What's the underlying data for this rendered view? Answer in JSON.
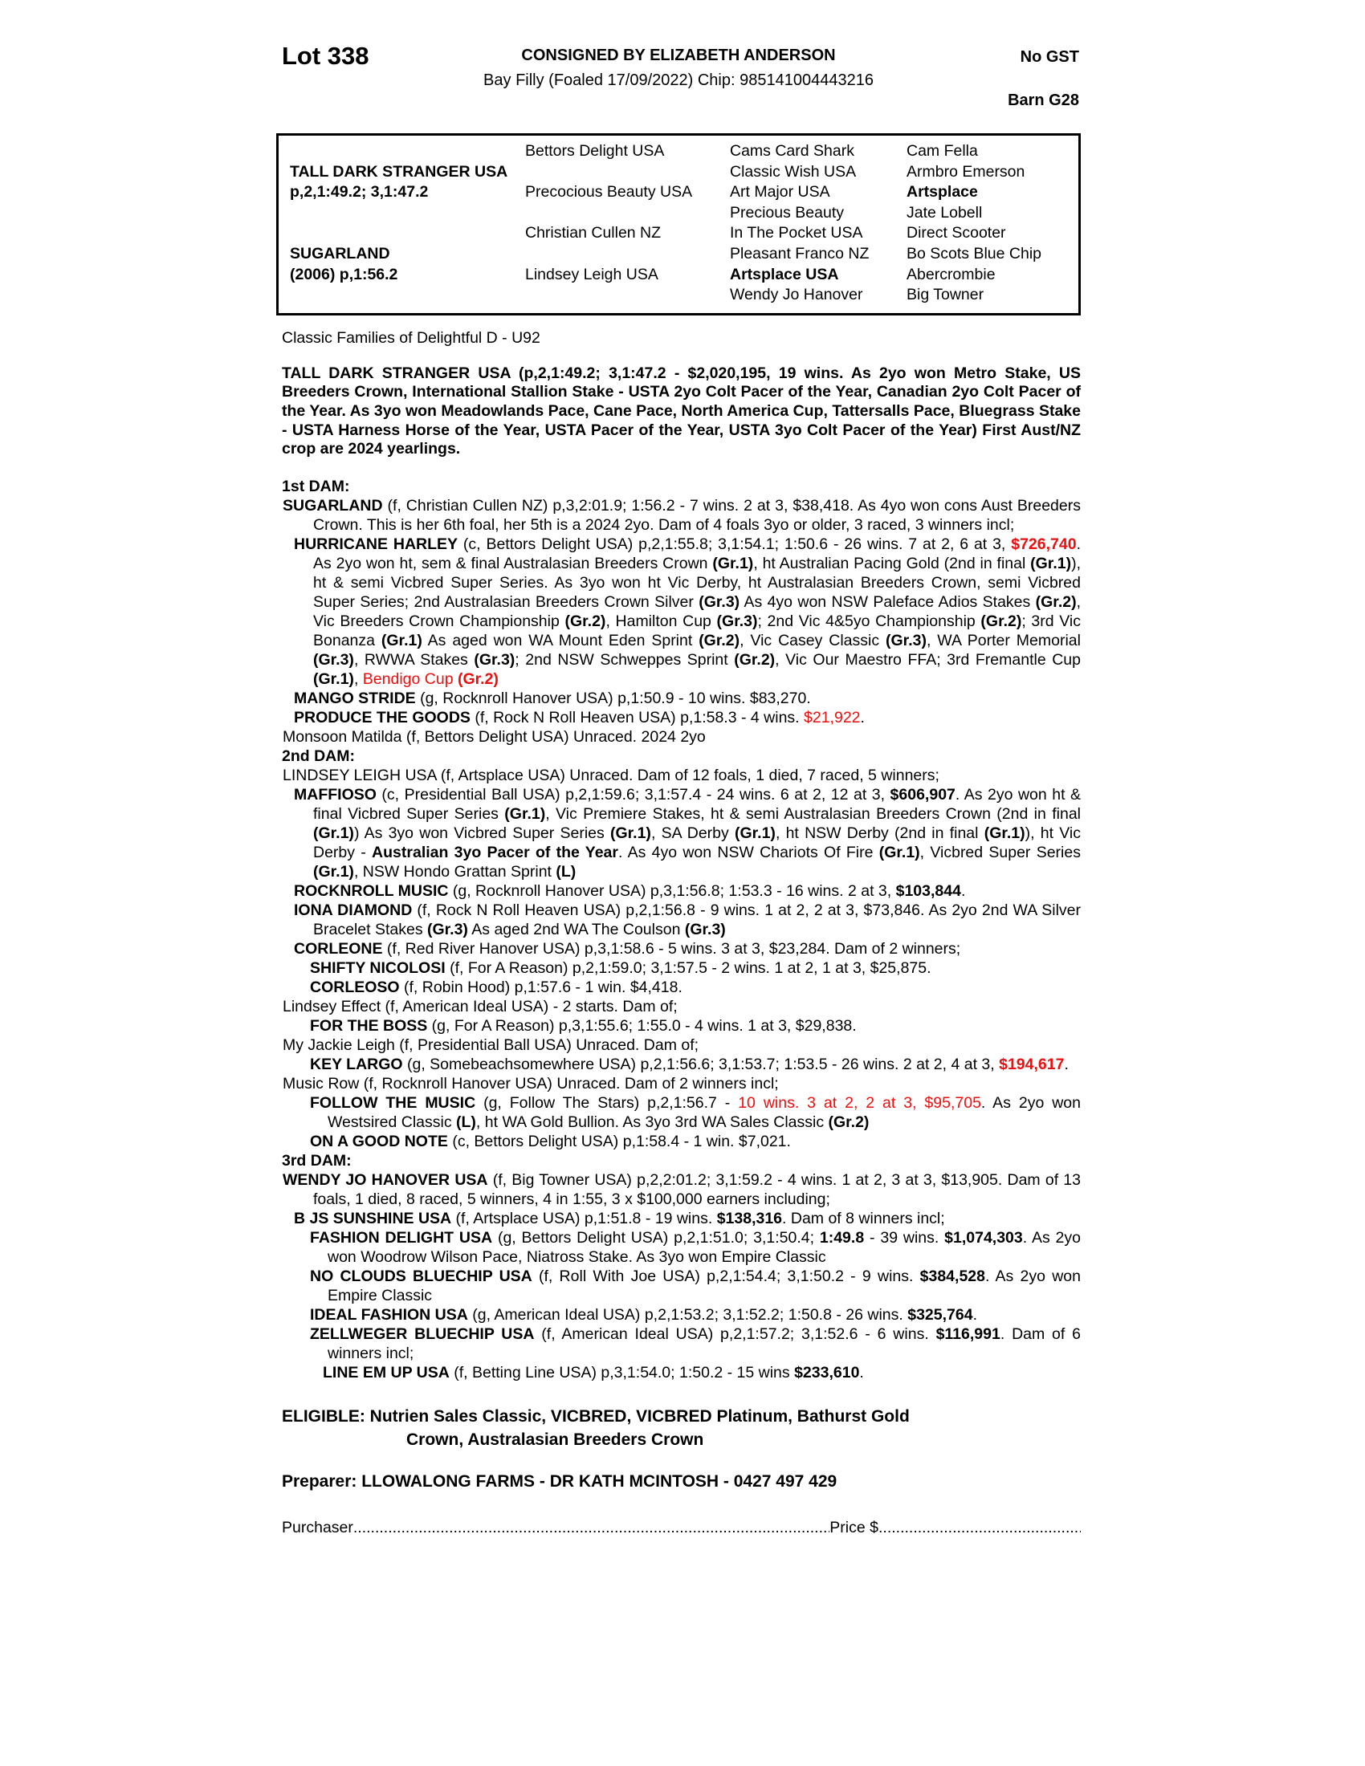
{
  "colors": {
    "accent_red": "#ee0e0e"
  },
  "header": {
    "lot": "Lot 338",
    "consigned": "CONSIGNED BY ELIZABETH ANDERSON",
    "subtitle": "Bay Filly (Foaled 17/09/2022) Chip: 985141004443216",
    "gst": "No GST",
    "barn": "Barn G28"
  },
  "pedigree": {
    "columns": [
      [
        {
          "t": ""
        },
        {
          "t": "TALL DARK STRANGER USA",
          "b": true
        },
        {
          "t": "p,2,1:49.2; 3,1:47.2",
          "b": true
        },
        {
          "t": ""
        },
        {
          "t": ""
        },
        {
          "t": "SUGARLAND",
          "b": true
        },
        {
          "t": "(2006) p,1:56.2",
          "b": true
        },
        {
          "t": ""
        }
      ],
      [
        {
          "t": "Bettors Delight USA"
        },
        {
          "t": ""
        },
        {
          "t": "Precocious Beauty USA"
        },
        {
          "t": ""
        },
        {
          "t": "Christian Cullen NZ"
        },
        {
          "t": ""
        },
        {
          "t": "Lindsey Leigh USA"
        },
        {
          "t": ""
        }
      ],
      [
        {
          "t": "Cams Card Shark"
        },
        {
          "t": "Classic Wish USA"
        },
        {
          "t": "Art Major USA"
        },
        {
          "t": "Precious Beauty"
        },
        {
          "t": "In The Pocket USA"
        },
        {
          "t": "Pleasant Franco NZ"
        },
        {
          "t": "Artsplace USA",
          "b": true
        },
        {
          "t": "Wendy Jo Hanover"
        }
      ],
      [
        {
          "t": "Cam Fella"
        },
        {
          "t": "Armbro Emerson"
        },
        {
          "t": "Artsplace",
          "b": true
        },
        {
          "t": "Jate Lobell"
        },
        {
          "t": "Direct Scooter"
        },
        {
          "t": "Bo Scots Blue Chip"
        },
        {
          "t": "Abercrombie"
        },
        {
          "t": "Big Towner"
        }
      ]
    ]
  },
  "families_line": "Classic Families of Delightful D - U92",
  "sire_paragraph": [
    {
      "t": "TALL DARK STRANGER USA (p,2,1:49.2; 3,1:47.2 - $2,020,195, 19 wins. As 2yo won Metro Stake, US Breeders Crown, International Stallion Stake - USTA 2yo Colt Pacer of the Year, Canadian 2yo Colt Pacer of the Year. As 3yo won Meadowlands Pace, Cane Pace, North America Cup, Tattersalls Pace, Bluegrass Stake - USTA Harness Horse of the Year, USTA Pacer of the Year, USTA 3yo Colt Pacer of the Year) First Aust/NZ crop are 2024 yearlings.",
      "b": true
    }
  ],
  "sections": [
    {
      "heading": "1st DAM:",
      "paragraphs": [
        {
          "lvl": 1,
          "segs": [
            {
              "t": "SUGARLAND",
              "b": true
            },
            {
              "t": " (f, Christian Cullen NZ) p,3,2:01.9; 1:56.2 - 7 wins. 2 at 3, $38,418. As 4yo won cons Aust Breeders Crown. This is her 6th foal, her 5th is a 2024 2yo. Dam of 4 foals 3yo or older, 3 raced, 3 winners incl;"
            }
          ]
        },
        {
          "lvl": 2,
          "segs": [
            {
              "t": "HURRICANE HARLEY",
              "b": true
            },
            {
              "t": " (c, Bettors Delight USA) p,2,1:55.8; 3,1:54.1; 1:50.6 - 26 wins. 7 at 2, 6 at 3, "
            },
            {
              "t": "$726,740",
              "b": true,
              "r": true
            },
            {
              "t": ". As 2yo won ht, sem & final Australasian Breeders Crown "
            },
            {
              "t": "(Gr.1)",
              "b": true
            },
            {
              "t": ", ht Australian Pacing Gold (2nd in final "
            },
            {
              "t": "(Gr.1)",
              "b": true
            },
            {
              "t": "), ht & semi Vicbred Super Series. As 3yo won ht Vic Derby, ht Australasian Breeders Crown, semi Vicbred Super Series; 2nd Australasian Breeders Crown Silver "
            },
            {
              "t": "(Gr.3)",
              "b": true
            },
            {
              "t": " As 4yo won NSW Paleface Adios Stakes "
            },
            {
              "t": "(Gr.2)",
              "b": true
            },
            {
              "t": ", Vic Breeders Crown Championship "
            },
            {
              "t": "(Gr.2)",
              "b": true
            },
            {
              "t": ", Hamilton Cup "
            },
            {
              "t": "(Gr.3)",
              "b": true
            },
            {
              "t": "; 2nd Vic 4&5yo Championship "
            },
            {
              "t": "(Gr.2)",
              "b": true
            },
            {
              "t": "; 3rd Vic Bonanza "
            },
            {
              "t": "(Gr.1)",
              "b": true
            },
            {
              "t": " As aged won WA Mount Eden Sprint "
            },
            {
              "t": "(Gr.2)",
              "b": true
            },
            {
              "t": ", Vic Casey Classic "
            },
            {
              "t": "(Gr.3)",
              "b": true
            },
            {
              "t": ", WA Porter Memorial "
            },
            {
              "t": "(Gr.3)",
              "b": true
            },
            {
              "t": ", RWWA Stakes "
            },
            {
              "t": "(Gr.3)",
              "b": true
            },
            {
              "t": "; 2nd NSW Schweppes Sprint "
            },
            {
              "t": "(Gr.2)",
              "b": true
            },
            {
              "t": ", Vic Our Maestro FFA; 3rd Fremantle Cup "
            },
            {
              "t": "(Gr.1)",
              "b": true
            },
            {
              "t": ", "
            },
            {
              "t": "Bendigo Cup ",
              "r": true
            },
            {
              "t": "(Gr.2)",
              "b": true,
              "r": true
            }
          ]
        },
        {
          "lvl": 2,
          "segs": [
            {
              "t": "MANGO STRIDE",
              "b": true
            },
            {
              "t": " (g, Rocknroll Hanover USA) p,1:50.9 - 10 wins. $83,270."
            }
          ]
        },
        {
          "lvl": 2,
          "segs": [
            {
              "t": "PRODUCE THE GOODS",
              "b": true
            },
            {
              "t": " (f, Rock N Roll Heaven USA) p,1:58.3 - 4 wins. "
            },
            {
              "t": "$21,922",
              "r": true
            },
            {
              "t": "."
            }
          ]
        },
        {
          "lvl": 1,
          "segs": [
            {
              "t": "Monsoon Matilda (f, Bettors Delight USA) Unraced. 2024 2yo"
            }
          ]
        }
      ]
    },
    {
      "heading": "2nd DAM:",
      "paragraphs": [
        {
          "lvl": 1,
          "segs": [
            {
              "t": "LINDSEY LEIGH USA (f, Artsplace USA) Unraced. Dam of 12 foals, 1 died, 7 raced, 5 winners;"
            }
          ]
        },
        {
          "lvl": 2,
          "segs": [
            {
              "t": "MAFFIOSO",
              "b": true
            },
            {
              "t": " (c, Presidential Ball USA) p,2,1:59.6; 3,1:57.4 - 24 wins. 6 at 2, 12 at 3, "
            },
            {
              "t": "$606,907",
              "b": true
            },
            {
              "t": ". As 2yo won ht & final Vicbred Super Series "
            },
            {
              "t": "(Gr.1)",
              "b": true
            },
            {
              "t": ", Vic Premiere Stakes, ht & semi Australasian Breeders Crown (2nd in final "
            },
            {
              "t": "(Gr.1)",
              "b": true
            },
            {
              "t": ") As 3yo won Vicbred Super Series "
            },
            {
              "t": "(Gr.1)",
              "b": true
            },
            {
              "t": ", SA Derby "
            },
            {
              "t": "(Gr.1)",
              "b": true
            },
            {
              "t": ", ht NSW Derby (2nd in final "
            },
            {
              "t": "(Gr.1)",
              "b": true
            },
            {
              "t": "), ht Vic Derby - "
            },
            {
              "t": "Australian 3yo Pacer of the Year",
              "b": true
            },
            {
              "t": ". As 4yo won NSW Chariots Of Fire "
            },
            {
              "t": "(Gr.1)",
              "b": true
            },
            {
              "t": ", Vicbred Super Series "
            },
            {
              "t": "(Gr.1)",
              "b": true
            },
            {
              "t": ", NSW Hondo Grattan Sprint "
            },
            {
              "t": "(L)",
              "b": true
            }
          ]
        },
        {
          "lvl": 2,
          "segs": [
            {
              "t": "ROCKNROLL MUSIC",
              "b": true
            },
            {
              "t": " (g, Rocknroll Hanover USA) p,3,1:56.8; 1:53.3 - 16 wins. 2 at 3, "
            },
            {
              "t": "$103,844",
              "b": true
            },
            {
              "t": "."
            }
          ]
        },
        {
          "lvl": 2,
          "segs": [
            {
              "t": "IONA DIAMOND",
              "b": true
            },
            {
              "t": " (f, Rock N Roll Heaven USA) p,2,1:56.8 - 9 wins. 1 at 2, 2 at 3, $73,846. As 2yo 2nd WA Silver Bracelet Stakes "
            },
            {
              "t": "(Gr.3)",
              "b": true
            },
            {
              "t": " As aged 2nd WA The Coulson "
            },
            {
              "t": "(Gr.3)",
              "b": true
            }
          ]
        },
        {
          "lvl": 2,
          "segs": [
            {
              "t": "CORLEONE",
              "b": true
            },
            {
              "t": " (f, Red River Hanover USA) p,3,1:58.6 - 5 wins. 3 at 3, $23,284. Dam of 2 winners;"
            }
          ]
        },
        {
          "lvl": 3,
          "segs": [
            {
              "t": "SHIFTY NICOLOSI",
              "b": true
            },
            {
              "t": " (f, For A Reason) p,2,1:59.0; 3,1:57.5 - 2 wins. 1 at 2, 1 at 3, $25,875."
            }
          ]
        },
        {
          "lvl": 3,
          "segs": [
            {
              "t": "CORLEOSO",
              "b": true
            },
            {
              "t": " (f, Robin Hood) p,1:57.6 - 1 win. $4,418."
            }
          ]
        },
        {
          "lvl": 1,
          "segs": [
            {
              "t": "Lindsey Effect (f, American Ideal USA) - 2 starts. Dam of;"
            }
          ]
        },
        {
          "lvl": 3,
          "segs": [
            {
              "t": "FOR THE BOSS",
              "b": true
            },
            {
              "t": " (g, For A Reason) p,3,1:55.6; 1:55.0 - 4 wins. 1 at 3, $29,838."
            }
          ]
        },
        {
          "lvl": 1,
          "segs": [
            {
              "t": "My Jackie Leigh (f, Presidential Ball USA) Unraced. Dam of;"
            }
          ]
        },
        {
          "lvl": 3,
          "segs": [
            {
              "t": "KEY LARGO",
              "b": true
            },
            {
              "t": " (g, Somebeachsomewhere USA) p,2,1:56.6; 3,1:53.7; 1:53.5 - 26 wins. 2 at 2, 4 at 3, "
            },
            {
              "t": "$194,617",
              "b": true,
              "r": true
            },
            {
              "t": "."
            }
          ]
        },
        {
          "lvl": 1,
          "segs": [
            {
              "t": "Music Row (f, Rocknroll Hanover USA) Unraced. Dam of 2 winners incl;"
            }
          ]
        },
        {
          "lvl": 3,
          "segs": [
            {
              "t": "FOLLOW THE MUSIC",
              "b": true
            },
            {
              "t": " (g, Follow The Stars) p,2,1:56.7 - "
            },
            {
              "t": "10 wins. 3 at 2, 2 at 3, $95,705",
              "r": true
            },
            {
              "t": ". As 2yo won Westsired Classic "
            },
            {
              "t": "(L)",
              "b": true
            },
            {
              "t": ", ht WA Gold Bullion. As 3yo 3rd WA Sales Classic "
            },
            {
              "t": "(Gr.2)",
              "b": true
            }
          ]
        },
        {
          "lvl": 3,
          "segs": [
            {
              "t": "ON A GOOD NOTE",
              "b": true
            },
            {
              "t": " (c, Bettors Delight USA) p,1:58.4 - 1 win. $7,021."
            }
          ]
        }
      ]
    },
    {
      "heading": "3rd DAM:",
      "paragraphs": [
        {
          "lvl": 1,
          "segs": [
            {
              "t": "WENDY JO HANOVER USA",
              "b": true
            },
            {
              "t": " (f, Big Towner USA) p,2,2:01.2; 3,1:59.2 - 4 wins. 1 at 2, 3 at 3, $13,905. Dam of 13 foals, 1 died, 8 raced, 5 winners, 4 in 1:55, 3 x $100,000 earners including;"
            }
          ]
        },
        {
          "lvl": 2,
          "segs": [
            {
              "t": "B JS SUNSHINE USA",
              "b": true
            },
            {
              "t": " (f, Artsplace USA) p,1:51.8 - 19 wins. "
            },
            {
              "t": "$138,316",
              "b": true
            },
            {
              "t": ". Dam of 8 winners incl;"
            }
          ]
        },
        {
          "lvl": 3,
          "segs": [
            {
              "t": "FASHION DELIGHT USA",
              "b": true
            },
            {
              "t": " (g, Bettors Delight USA) p,2,1:51.0; 3,1:50.4; "
            },
            {
              "t": "1:49.8",
              "b": true
            },
            {
              "t": " - 39 wins. "
            },
            {
              "t": "$1,074,303",
              "b": true
            },
            {
              "t": ". As 2yo won Woodrow Wilson Pace, Niatross Stake. As 3yo won Empire Classic"
            }
          ]
        },
        {
          "lvl": 3,
          "segs": [
            {
              "t": "NO CLOUDS BLUECHIP USA",
              "b": true
            },
            {
              "t": " (f, Roll With Joe USA) p,2,1:54.4; 3,1:50.2 - 9 wins. "
            },
            {
              "t": "$384,528",
              "b": true
            },
            {
              "t": ". As 2yo won Empire Classic"
            }
          ]
        },
        {
          "lvl": 3,
          "segs": [
            {
              "t": "IDEAL FASHION USA",
              "b": true
            },
            {
              "t": " (g, American Ideal USA) p,2,1:53.2; 3,1:52.2; 1:50.8 - 26 wins. "
            },
            {
              "t": "$325,764",
              "b": true
            },
            {
              "t": "."
            }
          ]
        },
        {
          "lvl": 3,
          "segs": [
            {
              "t": "ZELLWEGER BLUECHIP USA",
              "b": true
            },
            {
              "t": " (f, American Ideal USA) p,2,1:57.2; 3,1:52.6 - 6 wins. "
            },
            {
              "t": "$116,991",
              "b": true
            },
            {
              "t": ". Dam of 6 winners incl;"
            }
          ]
        },
        {
          "lvl": 4,
          "segs": [
            {
              "t": "LINE EM UP USA",
              "b": true
            },
            {
              "t": " (f, Betting Line USA) p,3,1:54.0; 1:50.2 - 15 wins "
            },
            {
              "t": "$233,610",
              "b": true
            },
            {
              "t": "."
            }
          ]
        }
      ]
    }
  ],
  "footer": {
    "eligible_line1": "ELIGIBLE: Nutrien Sales Classic, VICBRED, VICBRED Platinum, Bathurst Gold",
    "eligible_line2": "Crown, Australasian Breeders Crown",
    "preparer": "Preparer: LLOWALONG FARMS - DR KATH MCINTOSH - 0427 497 429",
    "purchaser_label": "Purchaser",
    "dots1": "..........................................................................................................................................................",
    "price_label": "Price $",
    "dots2": "............................................................"
  }
}
